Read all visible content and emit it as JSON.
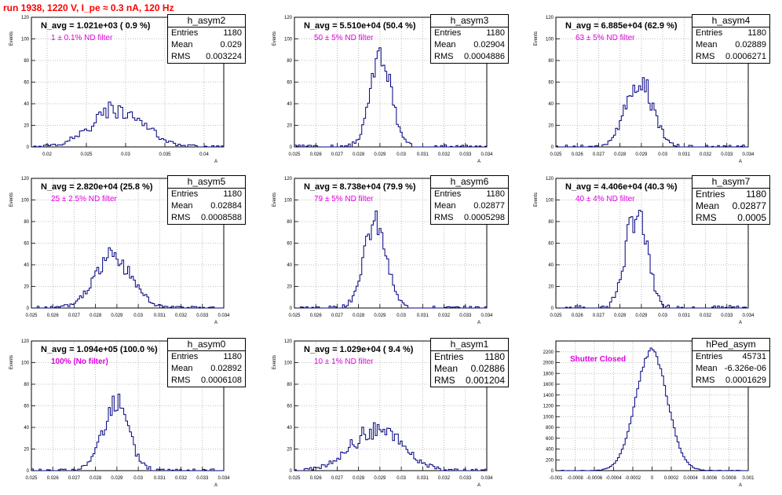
{
  "run_title": "run 1938,  1220 V, I_pe ≈ 0.3 nA, 120 Hz",
  "colors": {
    "hist": "#000080",
    "title": "#ff0000",
    "filter": "#e000e0",
    "grid": "#aaaaaa"
  },
  "chart_data": [
    {
      "type": "histogram",
      "name": "h_asym2",
      "y_label": "Events",
      "x_label": "A",
      "n_avg": "N_avg = 1.021e+03 ( 0.9 %)",
      "filter": "1 ± 0.1% ND filter",
      "stats": {
        "entries": "1180",
        "mean": "0.029",
        "rms": "0.003224"
      },
      "xlim": [
        0.018,
        0.0425
      ],
      "ylim": [
        0,
        120
      ],
      "xticks": [
        "0.02",
        "0.025",
        "0.03",
        "0.035",
        "0.04"
      ],
      "xtick_vals": [
        0.02,
        0.025,
        0.03,
        0.035,
        0.04
      ],
      "yticks": [
        0,
        20,
        40,
        60,
        80,
        100,
        120
      ],
      "dist": {
        "mean": 0.029,
        "sigma": 0.0033,
        "peak": 36,
        "noise": 0.25,
        "bins": 80,
        "seed": 2
      }
    },
    {
      "type": "histogram",
      "name": "h_asym3",
      "y_label": "Events",
      "x_label": "A",
      "n_avg": "N_avg = 5.510e+04 (50.4 %)",
      "filter": "50 ± 5% ND filter",
      "stats": {
        "entries": "1180",
        "mean": "0.02904",
        "rms": "0.0004886"
      },
      "xlim": [
        0.025,
        0.034
      ],
      "ylim": [
        0,
        120
      ],
      "xticks": [
        "0.025",
        "0.026",
        "0.027",
        "0.028",
        "0.029",
        "0.03",
        "0.031",
        "0.032",
        "0.033",
        "0.034"
      ],
      "xtick_vals": [
        0.025,
        0.026,
        0.027,
        0.028,
        0.029,
        0.03,
        0.031,
        0.032,
        0.033,
        0.034
      ],
      "yticks": [
        0,
        20,
        40,
        60,
        80,
        100,
        120
      ],
      "dist": {
        "mean": 0.02904,
        "sigma": 0.00049,
        "peak": 85,
        "noise": 0.15,
        "bins": 100,
        "seed": 3
      }
    },
    {
      "type": "histogram",
      "name": "h_asym4",
      "y_label": "Events",
      "x_label": "A",
      "n_avg": "N_avg = 6.885e+04 (62.9 %)",
      "filter": "63 ± 5% ND filter",
      "stats": {
        "entries": "1180",
        "mean": "0.02889",
        "rms": "0.0006271"
      },
      "xlim": [
        0.025,
        0.034
      ],
      "ylim": [
        0,
        120
      ],
      "xticks": [
        "0.025",
        "0.026",
        "0.027",
        "0.028",
        "0.029",
        "0.03",
        "0.031",
        "0.032",
        "0.033",
        "0.034"
      ],
      "xtick_vals": [
        0.025,
        0.026,
        0.027,
        0.028,
        0.029,
        0.03,
        0.031,
        0.032,
        0.033,
        0.034
      ],
      "yticks": [
        0,
        20,
        40,
        60,
        80,
        100,
        120
      ],
      "dist": {
        "mean": 0.02889,
        "sigma": 0.00063,
        "peak": 62,
        "noise": 0.2,
        "bins": 100,
        "seed": 4
      }
    },
    {
      "type": "histogram",
      "name": "h_asym5",
      "y_label": "Events",
      "x_label": "A",
      "n_avg": "N_avg = 2.820e+04 (25.8 %)",
      "filter": "25 ± 2.5% ND filter",
      "stats": {
        "entries": "1180",
        "mean": "0.02884",
        "rms": "0.0008588"
      },
      "xlim": [
        0.025,
        0.034
      ],
      "ylim": [
        0,
        120
      ],
      "xticks": [
        "0.025",
        "0.026",
        "0.027",
        "0.028",
        "0.029",
        "0.03",
        "0.031",
        "0.032",
        "0.033",
        "0.034"
      ],
      "xtick_vals": [
        0.025,
        0.026,
        0.027,
        0.028,
        0.029,
        0.03,
        0.031,
        0.032,
        0.033,
        0.034
      ],
      "yticks": [
        0,
        20,
        40,
        60,
        80,
        100,
        120
      ],
      "dist": {
        "mean": 0.02884,
        "sigma": 0.00086,
        "peak": 48,
        "noise": 0.22,
        "bins": 100,
        "seed": 5
      }
    },
    {
      "type": "histogram",
      "name": "h_asym6",
      "y_label": "Events",
      "x_label": "A",
      "n_avg": "N_avg = 8.738e+04 (79.9 %)",
      "filter": "79 ± 5% ND filter",
      "stats": {
        "entries": "1180",
        "mean": "0.02877",
        "rms": "0.0005298"
      },
      "xlim": [
        0.025,
        0.034
      ],
      "ylim": [
        0,
        120
      ],
      "xticks": [
        "0.025",
        "0.026",
        "0.027",
        "0.028",
        "0.029",
        "0.03",
        "0.031",
        "0.032",
        "0.033",
        "0.034"
      ],
      "xtick_vals": [
        0.025,
        0.026,
        0.027,
        0.028,
        0.029,
        0.03,
        0.031,
        0.032,
        0.033,
        0.034
      ],
      "yticks": [
        0,
        20,
        40,
        60,
        80,
        100,
        120
      ],
      "dist": {
        "mean": 0.02877,
        "sigma": 0.00053,
        "peak": 78,
        "noise": 0.15,
        "bins": 100,
        "seed": 6
      }
    },
    {
      "type": "histogram",
      "name": "h_asym7",
      "y_label": "Events",
      "x_label": "A",
      "n_avg": "N_avg = 4.406e+04 (40.3 %)",
      "filter": "40 ± 4% ND filter",
      "stats": {
        "entries": "1180",
        "mean": "0.02877",
        "rms": "0.0005"
      },
      "stats_big": true,
      "xlim": [
        0.025,
        0.034
      ],
      "ylim": [
        0,
        120
      ],
      "xticks": [
        "0.025",
        "0.026",
        "0.027",
        "0.028",
        "0.029",
        "0.03",
        "0.031",
        "0.032",
        "0.033",
        "0.034"
      ],
      "xtick_vals": [
        0.025,
        0.026,
        0.027,
        0.028,
        0.029,
        0.03,
        0.031,
        0.032,
        0.033,
        0.034
      ],
      "yticks": [
        0,
        20,
        40,
        60,
        80,
        100,
        120
      ],
      "dist": {
        "mean": 0.02877,
        "sigma": 0.0005,
        "peak": 88,
        "noise": 0.18,
        "bins": 100,
        "seed": 7
      }
    },
    {
      "type": "histogram",
      "name": "h_asym0",
      "y_label": "Events",
      "x_label": "A",
      "n_avg": "N_avg = 1.094e+05 (100.0 %)",
      "filter": "100% (No filter)",
      "stats": {
        "entries": "1180",
        "mean": "0.02892",
        "rms": "0.0006108"
      },
      "xlim": [
        0.025,
        0.034
      ],
      "ylim": [
        0,
        120
      ],
      "xticks": [
        "0.025",
        "0.026",
        "0.027",
        "0.028",
        "0.029",
        "0.03",
        "0.031",
        "0.032",
        "0.033",
        "0.034"
      ],
      "xtick_vals": [
        0.025,
        0.026,
        0.027,
        0.028,
        0.029,
        0.03,
        0.031,
        0.032,
        0.033,
        0.034
      ],
      "yticks": [
        0,
        20,
        40,
        60,
        80,
        100,
        120
      ],
      "dist": {
        "mean": 0.02892,
        "sigma": 0.00061,
        "peak": 62,
        "noise": 0.2,
        "bins": 100,
        "seed": 8
      }
    },
    {
      "type": "histogram",
      "name": "h_asym1",
      "y_label": "Events",
      "x_label": "A",
      "n_avg": "N_avg = 1.029e+04 ( 9.4 %)",
      "filter": "10 ± 1% ND filter",
      "stats": {
        "entries": "1180",
        "mean": "0.02886",
        "rms": "0.001204"
      },
      "stats_big": true,
      "xlim": [
        0.025,
        0.034
      ],
      "ylim": [
        0,
        120
      ],
      "xticks": [
        "0.025",
        "0.026",
        "0.027",
        "0.028",
        "0.029",
        "0.03",
        "0.031",
        "0.032",
        "0.033",
        "0.034"
      ],
      "xtick_vals": [
        0.025,
        0.026,
        0.027,
        0.028,
        0.029,
        0.03,
        0.031,
        0.032,
        0.033,
        0.034
      ],
      "yticks": [
        0,
        20,
        40,
        60,
        80,
        100,
        120
      ],
      "dist": {
        "mean": 0.02886,
        "sigma": 0.0012,
        "peak": 38,
        "noise": 0.25,
        "bins": 100,
        "seed": 9
      }
    },
    {
      "type": "histogram",
      "name": "hPed_asym",
      "y_label": "",
      "x_label": "A",
      "n_avg": "",
      "filter": "Shutter Closed",
      "stats": {
        "entries": "45731",
        "mean": "-6.326e-06",
        "rms": "0.0001629"
      },
      "xlim": [
        -0.001,
        0.001
      ],
      "ylim": [
        0,
        2400
      ],
      "xticks": [
        "-0.001",
        "-0.0008",
        "-0.0006",
        "-0.0004",
        "-0.0002",
        "0",
        "0.0002",
        "0.0004",
        "0.0006",
        "0.0008",
        "0.001"
      ],
      "xtick_vals": [
        -0.001,
        -0.0008,
        -0.0006,
        -0.0004,
        -0.0002,
        0,
        0.0002,
        0.0004,
        0.0006,
        0.0008,
        0.001
      ],
      "yticks": [
        0,
        200,
        400,
        600,
        800,
        1000,
        1200,
        1400,
        1600,
        1800,
        2000,
        2200
      ],
      "dist": {
        "mean": -6.3e-06,
        "sigma": 0.000163,
        "peak": 2230,
        "noise": 0.02,
        "bins": 100,
        "seed": 10
      }
    }
  ]
}
